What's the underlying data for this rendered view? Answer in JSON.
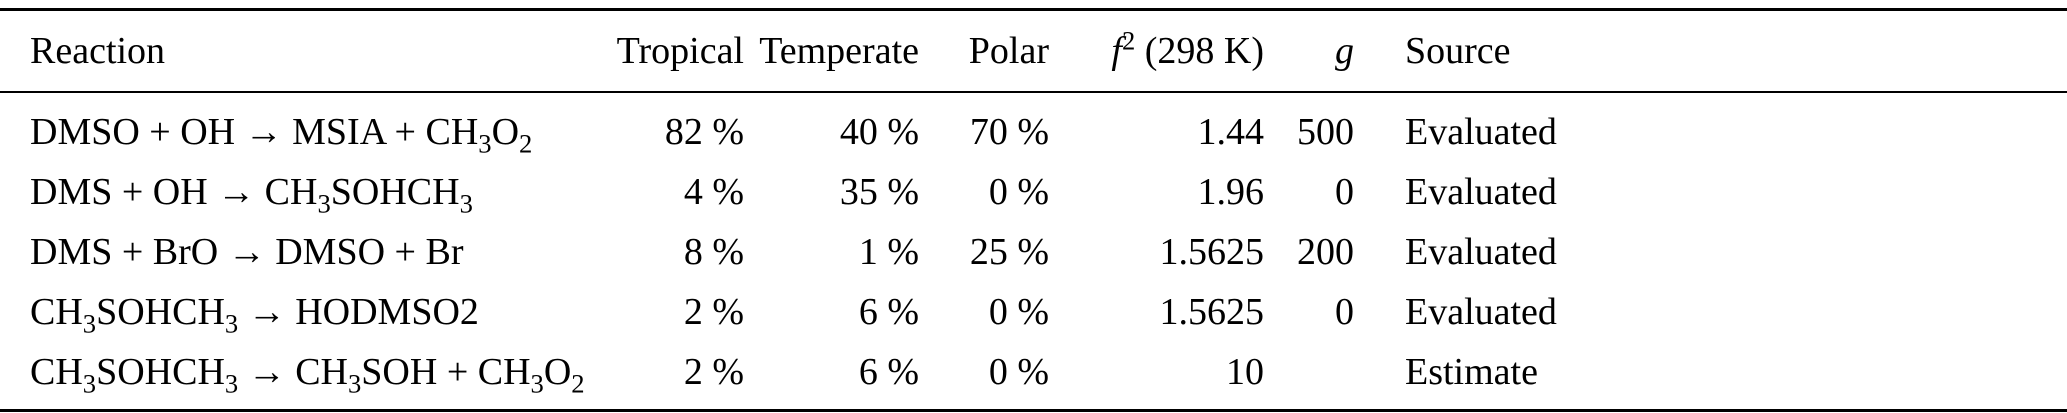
{
  "table": {
    "headers": {
      "reaction": "Reaction",
      "tropical": "Tropical",
      "temperate": "Temperate",
      "polar": "Polar",
      "f2_parts": [
        {
          "t": "f",
          "italic": true
        },
        {
          "t": "2",
          "sup": true
        },
        {
          "t": " (298 K)"
        }
      ],
      "g": "g",
      "source": "Source"
    },
    "rows": [
      {
        "reaction": [
          {
            "t": "DMSO + OH → MSIA + CH"
          },
          {
            "t": "3",
            "sub": true
          },
          {
            "t": "O"
          },
          {
            "t": "2",
            "sub": true
          }
        ],
        "tropical": "82 %",
        "temperate": "40 %",
        "polar": "70 %",
        "f2": "1.44",
        "g": "500",
        "source": "Evaluated"
      },
      {
        "reaction": [
          {
            "t": "DMS + OH → CH"
          },
          {
            "t": "3",
            "sub": true
          },
          {
            "t": "SOHCH"
          },
          {
            "t": "3",
            "sub": true
          }
        ],
        "tropical": "4 %",
        "temperate": "35 %",
        "polar": "0 %",
        "f2": "1.96",
        "g": "0",
        "source": "Evaluated"
      },
      {
        "reaction": [
          {
            "t": "DMS + BrO → DMSO + Br"
          }
        ],
        "tropical": "8 %",
        "temperate": "1 %",
        "polar": "25 %",
        "f2": "1.5625",
        "g": "200",
        "source": "Evaluated"
      },
      {
        "reaction": [
          {
            "t": "CH"
          },
          {
            "t": "3",
            "sub": true
          },
          {
            "t": "SOHCH"
          },
          {
            "t": "3",
            "sub": true
          },
          {
            "t": " → HODMSO2"
          }
        ],
        "tropical": "2 %",
        "temperate": "6 %",
        "polar": "0 %",
        "f2": "1.5625",
        "g": "0",
        "source": "Evaluated"
      },
      {
        "reaction": [
          {
            "t": "CH"
          },
          {
            "t": "3",
            "sub": true
          },
          {
            "t": "SOHCH"
          },
          {
            "t": "3",
            "sub": true
          },
          {
            "t": " → CH"
          },
          {
            "t": "3",
            "sub": true
          },
          {
            "t": "SOH + CH"
          },
          {
            "t": "3",
            "sub": true
          },
          {
            "t": "O"
          },
          {
            "t": "2",
            "sub": true
          }
        ],
        "tropical": "2 %",
        "temperate": "6 %",
        "polar": "0 %",
        "f2": "10",
        "g": "",
        "source": "Estimate"
      }
    ]
  }
}
